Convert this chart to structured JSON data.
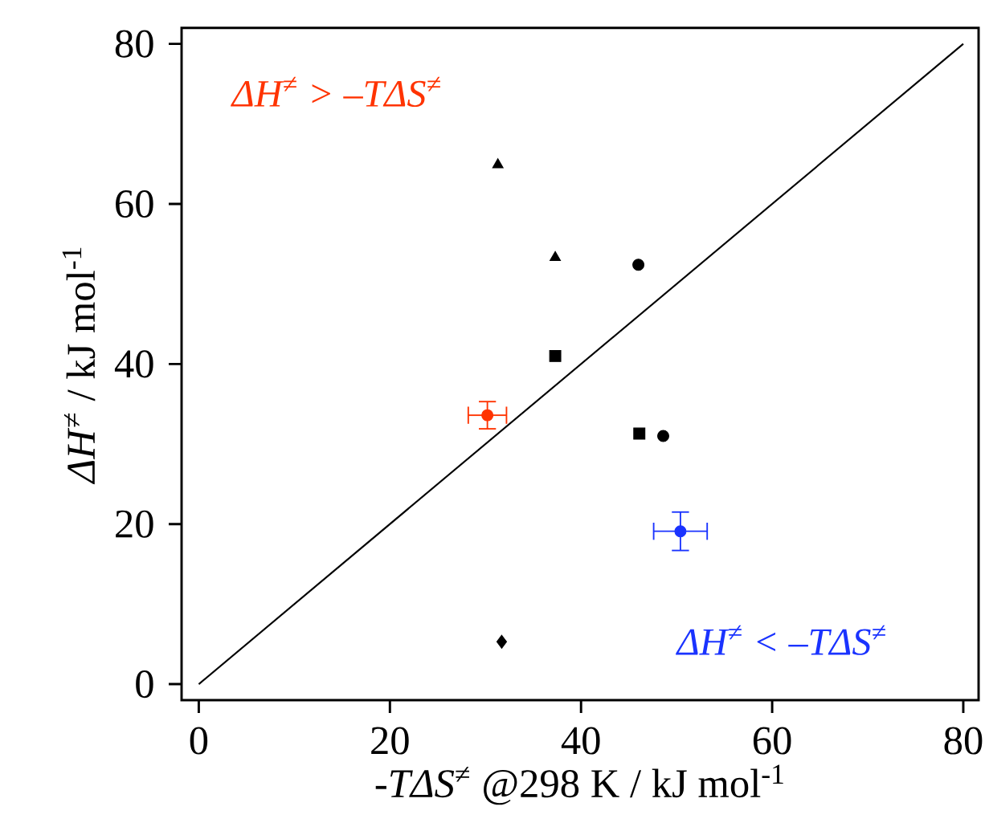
{
  "chart_data": {
    "type": "scatter",
    "xlabel": "-*TΔS*$^{≠}$ @298 K / kJ mol$^{-1}$",
    "ylabel": "*ΔH*$^{≠}$ / kJ mol$^{-1}$",
    "xlim": [
      -1.8,
      81.6
    ],
    "ylim": [
      -2,
      82
    ],
    "xticks": [
      0,
      20,
      40,
      60,
      80
    ],
    "yticks": [
      0,
      20,
      40,
      60,
      80
    ],
    "annotations": [
      "ΔH$^{≠}$ > –TΔS$^{≠}$",
      "ΔH$^{≠}$ < –TΔS$^{≠}$"
    ],
    "series": [
      {
        "type": "line",
        "color": "#000000",
        "marker": "none",
        "line_style": "solid",
        "x": [
          0,
          80
        ],
        "values": [
          0,
          80
        ]
      },
      {
        "color": "#000000",
        "marker": "triangle",
        "x": [
          31.3,
          37.3
        ],
        "values": [
          64.9,
          53.3
        ]
      },
      {
        "color": "#000000",
        "marker": "circle",
        "x": [
          46.0,
          48.6
        ],
        "values": [
          52.4,
          31.0
        ]
      },
      {
        "color": "#000000",
        "marker": "square",
        "x": [
          37.3,
          46.1
        ],
        "values": [
          41.0,
          31.3
        ]
      },
      {
        "color": "#000000",
        "marker": "diamond",
        "x": [
          31.7
        ],
        "values": [
          5.3
        ]
      },
      {
        "color": "#ff3300",
        "marker": "circle",
        "x": [
          30.2
        ],
        "values": [
          33.6
        ],
        "errors": [
          1.7
        ],
        "xerrors": [
          2.0
        ]
      },
      {
        "color": "#1a33ff",
        "marker": "circle",
        "x": [
          50.4
        ],
        "values": [
          19.1
        ],
        "errors": [
          2.4
        ],
        "xerrors": [
          2.8
        ]
      }
    ]
  }
}
